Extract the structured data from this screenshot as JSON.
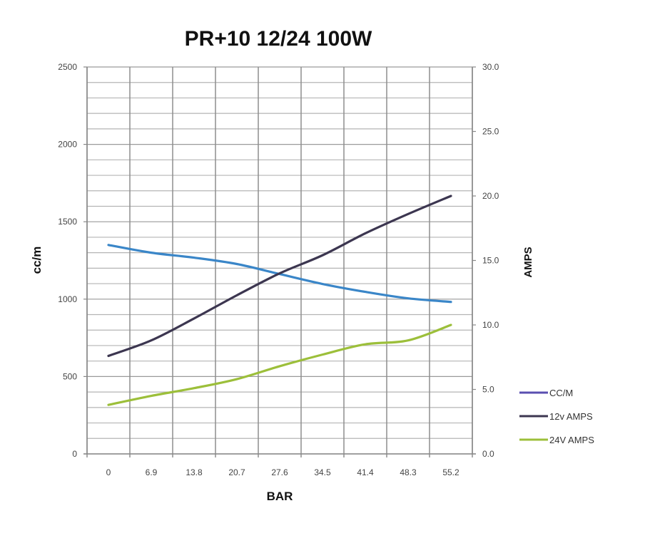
{
  "chart_data": {
    "type": "line",
    "title": "PR+10 12/24 100W",
    "xlabel": "BAR",
    "ylabel": "cc/m",
    "y2label": "AMPS",
    "categories": [
      "0",
      "6.9",
      "13.8",
      "20.7",
      "27.6",
      "34.5",
      "41.4",
      "48.3",
      "55.2"
    ],
    "ylim": [
      0,
      2500
    ],
    "y_ticks": [
      "0",
      "500",
      "1000",
      "1500",
      "2000",
      "2500"
    ],
    "y2lim": [
      0,
      30
    ],
    "y2_ticks": [
      "0.0",
      "5.0",
      "10.0",
      "15.0",
      "20.0",
      "25.0",
      "30.0"
    ],
    "grid": true,
    "legend_position": "right-bottom",
    "series": [
      {
        "name": "CC/M",
        "axis": "left",
        "color": "#3a86c8",
        "legend_color": "#5a4fb0",
        "values": [
          1350,
          1300,
          1268,
          1227,
          1162,
          1098,
          1047,
          1005,
          982
        ]
      },
      {
        "name": "12v AMPS",
        "axis": "right",
        "color": "#3c3650",
        "legend_color": "#3c3650",
        "values": [
          7.6,
          8.8,
          10.5,
          12.3,
          14.0,
          15.4,
          17.1,
          18.6,
          20.0
        ]
      },
      {
        "name": "24V AMPS",
        "axis": "right",
        "color": "#9cbf3a",
        "legend_color": "#9cbf3a",
        "values": [
          3.8,
          4.5,
          5.1,
          5.8,
          6.8,
          7.7,
          8.5,
          8.8,
          10.0
        ]
      }
    ]
  }
}
